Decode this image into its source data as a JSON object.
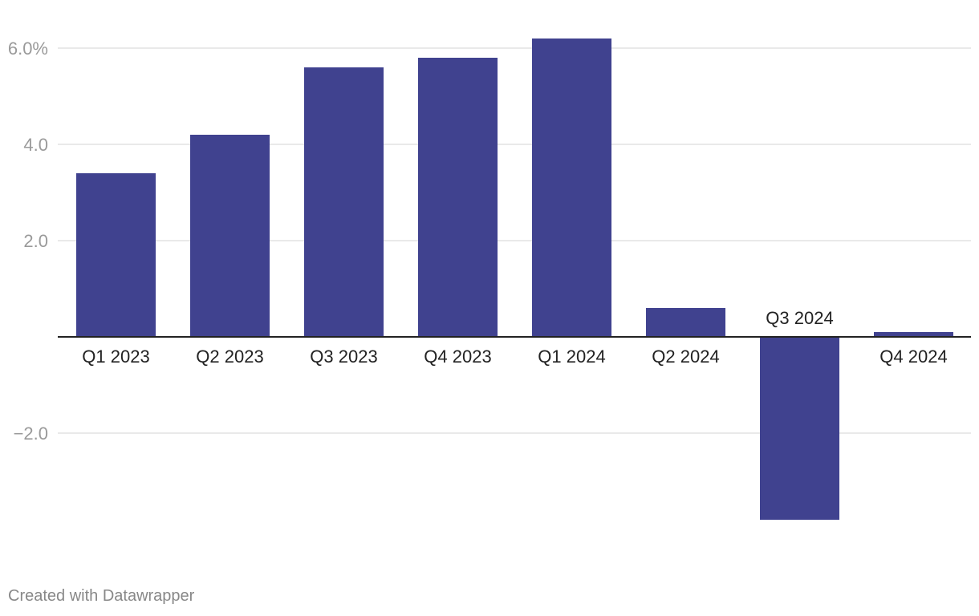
{
  "chart_data": {
    "type": "bar",
    "categories": [
      "Q1 2023",
      "Q2 2023",
      "Q3 2023",
      "Q4 2023",
      "Q1 2024",
      "Q2 2024",
      "Q3 2024",
      "Q4 2024"
    ],
    "values": [
      3.4,
      4.2,
      5.6,
      5.8,
      6.2,
      0.6,
      -3.8,
      0.1
    ],
    "yticks": [
      {
        "value": 6,
        "label": "6.0%"
      },
      {
        "value": 4,
        "label": "4.0"
      },
      {
        "value": 2,
        "label": "2.0"
      },
      {
        "value": -2,
        "label": "−2.0"
      }
    ],
    "ylim": [
      -4.7,
      6.7
    ],
    "grid": true,
    "bar_color": "#40428f",
    "grid_color": "#e2e2e2",
    "baseline_color": "#222222"
  },
  "footer": {
    "credit": "Created with Datawrapper"
  }
}
